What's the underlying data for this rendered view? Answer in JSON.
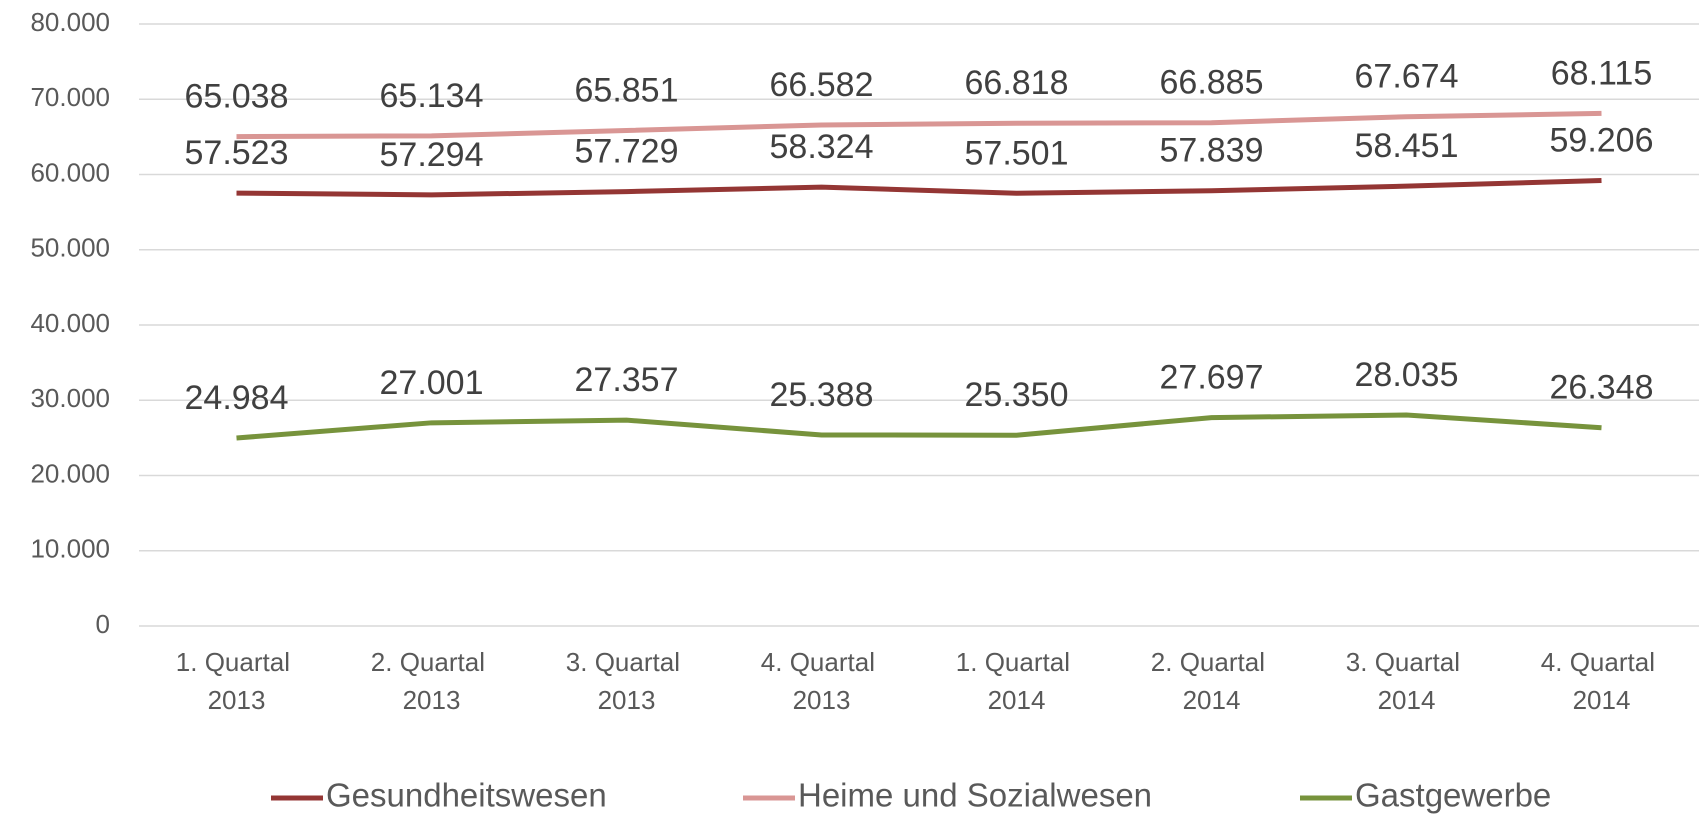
{
  "chart_data": {
    "type": "line",
    "categories": [
      "1. Quartal 2013",
      "2. Quartal 2013",
      "3. Quartal 2013",
      "4. Quartal 2013",
      "1. Quartal 2014",
      "2. Quartal 2014",
      "3. Quartal 2014",
      "4. Quartal 2014"
    ],
    "series": [
      {
        "name": "Gesundheitswesen",
        "color": "#943634",
        "values": [
          57523,
          57294,
          57729,
          58324,
          57501,
          57839,
          58451,
          59206
        ],
        "value_labels": [
          "57.523",
          "57.294",
          "57.729",
          "58.324",
          "57.501",
          "57.839",
          "58.451",
          "59.206"
        ]
      },
      {
        "name": "Heime und Sozialwesen",
        "color": "#d99694",
        "values": [
          65038,
          65134,
          65851,
          66582,
          66818,
          66885,
          67674,
          68115
        ],
        "value_labels": [
          "65.038",
          "65.134",
          "65.851",
          "66.582",
          "66.818",
          "66.885",
          "67.674",
          "68.115"
        ]
      },
      {
        "name": "Gastgewerbe",
        "color": "#77933c",
        "values": [
          24984,
          27001,
          27357,
          25388,
          25350,
          27697,
          28035,
          26348
        ],
        "value_labels": [
          "24.984",
          "27.001",
          "27.357",
          "25.388",
          "25.350",
          "27.697",
          "28.035",
          "26.348"
        ]
      }
    ],
    "ylim": [
      0,
      80000
    ],
    "yticks": [
      0,
      {
        "value": 10000,
        "label": "10.000"
      },
      {
        "value": 20000,
        "label": "20.000"
      },
      {
        "value": 30000,
        "label": "30.000"
      },
      {
        "value": 40000,
        "label": "40.000"
      },
      {
        "value": 50000,
        "label": "50.000"
      },
      {
        "value": 60000,
        "label": "60.000"
      },
      {
        "value": 70000,
        "label": "70.000"
      },
      {
        "value": 80000,
        "label": "80.000"
      }
    ],
    "grid": true,
    "legend": "bottom"
  }
}
